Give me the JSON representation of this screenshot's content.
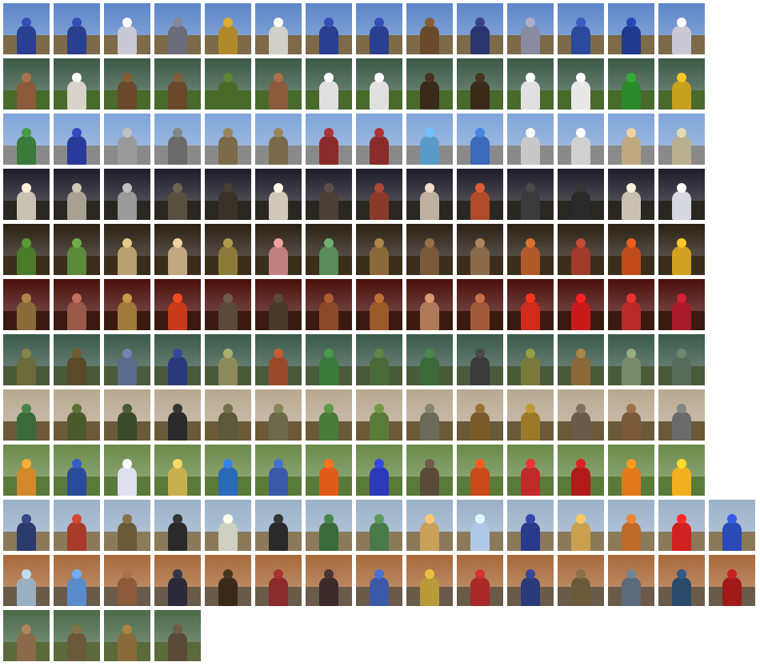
{
  "rows": [
    {
      "sky": "#5c86c8",
      "ground": "#7c6a48",
      "figures": [
        "#2a3f8f",
        "#2a3f8f",
        "#c9c9d6",
        "#6c6c7a",
        "#b08a2a",
        "#d0cfc8",
        "#2a3f8f",
        "#2a3f8f",
        "#6b4a2c",
        "#2b356b",
        "#8a8aa0",
        "#2b4b9a",
        "#1f3a8f",
        "#c9c9d6"
      ]
    },
    {
      "sky": "#3b5a46",
      "ground": "#486a2b",
      "figures": [
        "#8a5a3a",
        "#d8d2c8",
        "#6a4a2a",
        "#6a4a2a",
        "#4a6a2a",
        "#8a5a3a",
        "#e0e0e0",
        "#e0e0e0",
        "#3a2a1a",
        "#3a2a1a",
        "#e0e0e0",
        "#e8e8e8",
        "#2a8a2a",
        "#c8a020"
      ]
    },
    {
      "sky": "#7fa4d8",
      "ground": "#8a8a8a",
      "figures": [
        "#3a7a3a",
        "#2a3a9a",
        "#9a9a9a",
        "#6a6a6a",
        "#7a6a4a",
        "#7a6a4a",
        "#8a2a2a",
        "#8a2a2a",
        "#5a9ac8",
        "#3a6ab8",
        "#c8c8c8",
        "#d0d0d0",
        "#c0a880",
        "#b8b090"
      ]
    },
    {
      "sky": "#1e1c28",
      "ground": "#2a2620",
      "figures": [
        "#c8c0b0",
        "#a8a090",
        "#9a9a9a",
        "#5a5040",
        "#3a3228",
        "#d0c8b8",
        "#4a4038",
        "#8a3a2a",
        "#c0b0a0",
        "#b04a2a",
        "#3a3a3a",
        "#2a2a2a",
        "#c8c0b0",
        "#d8d8e0"
      ]
    },
    {
      "sky": "#2a2014",
      "ground": "#3a2e1a",
      "figures": [
        "#4a7a2a",
        "#5a8a3a",
        "#b8a070",
        "#c0a880",
        "#8a7a3a",
        "#c08080",
        "#5a8a5a",
        "#8a6a3a",
        "#7a5a3a",
        "#8a6a4a",
        "#b05a2a",
        "#a03a2a",
        "#c04a1a",
        "#d0a020"
      ]
    },
    {
      "sky": "#4a0e0a",
      "ground": "#3a1a10",
      "figures": [
        "#8a6a3a",
        "#9a5a4a",
        "#a07a3a",
        "#c83a1a",
        "#5a4a3a",
        "#4a3a2a",
        "#8a4a2a",
        "#9a5a2a",
        "#b07a5a",
        "#a05a3a",
        "#d02a1a",
        "#c81a1a",
        "#b82a2a",
        "#a81a2a"
      ]
    },
    {
      "sky": "#3a5a4a",
      "ground": "#4a5a3a",
      "figures": [
        "#6a6a3a",
        "#5a4a2a",
        "#5a6a8a",
        "#2a3a7a",
        "#8a8a5a",
        "#9a4a2a",
        "#3a7a3a",
        "#4a6a3a",
        "#3a6a3a",
        "#3a3a3a",
        "#7a7a3a",
        "#8a6a3a",
        "#7a8a6a",
        "#5a6a5a"
      ]
    },
    {
      "sky": "#b8a890",
      "ground": "#6a5a3a",
      "figures": [
        "#3a6a3a",
        "#4a5a2a",
        "#3a4a2a",
        "#2a2a2a",
        "#5a5a3a",
        "#6a6a4a",
        "#4a7a3a",
        "#5a7a3a",
        "#6a6a5a",
        "#7a5a2a",
        "#9a7a2a",
        "#6a5a4a",
        "#7a5a3a",
        "#6a6a6a"
      ]
    },
    {
      "sky": "#6a8a4a",
      "ground": "#5a7a3a",
      "figures": [
        "#d08a2a",
        "#2a4a9a",
        "#e0e0f0",
        "#c8b050",
        "#2a6ab8",
        "#3a5aa8",
        "#e05a1a",
        "#2a3ab8",
        "#5a4a3a",
        "#c84a1a",
        "#c02a2a",
        "#b01a1a",
        "#e07a1a",
        "#f0b020"
      ]
    },
    {
      "sky": "#9ab0c8",
      "ground": "#8a7a5a",
      "figures": [
        "#2a3a6a",
        "#a83a2a",
        "#6a5a3a",
        "#2a2a2a",
        "#d0d0c0",
        "#2a2a2a",
        "#3a6a3a",
        "#4a7a4a",
        "#c8a05a",
        "#b0c8e8",
        "#2a3a8a",
        "#c8a050",
        "#c06a2a",
        "#d02020",
        "#2a4ab8"
      ]
    },
    {
      "sky": "#a86a3a",
      "ground": "#6a5a4a",
      "figures": [
        "#9ab0c0",
        "#5a8ac8",
        "#8a5a3a",
        "#2a2a3a",
        "#3a2a1a",
        "#8a2a2a",
        "#3a2a2a",
        "#3a5aa8",
        "#b89a3a",
        "#a82a2a",
        "#2a3a7a",
        "#6a5a3a",
        "#5a6a7a",
        "#2a4a6a",
        "#a01a1a"
      ]
    },
    {
      "sky": "#4a6a4a",
      "ground": "#5a6a3a",
      "figures": [
        "#8a6a4a",
        "#6a5a3a",
        "#8a6a3a",
        "#5a4a3a"
      ]
    }
  ]
}
